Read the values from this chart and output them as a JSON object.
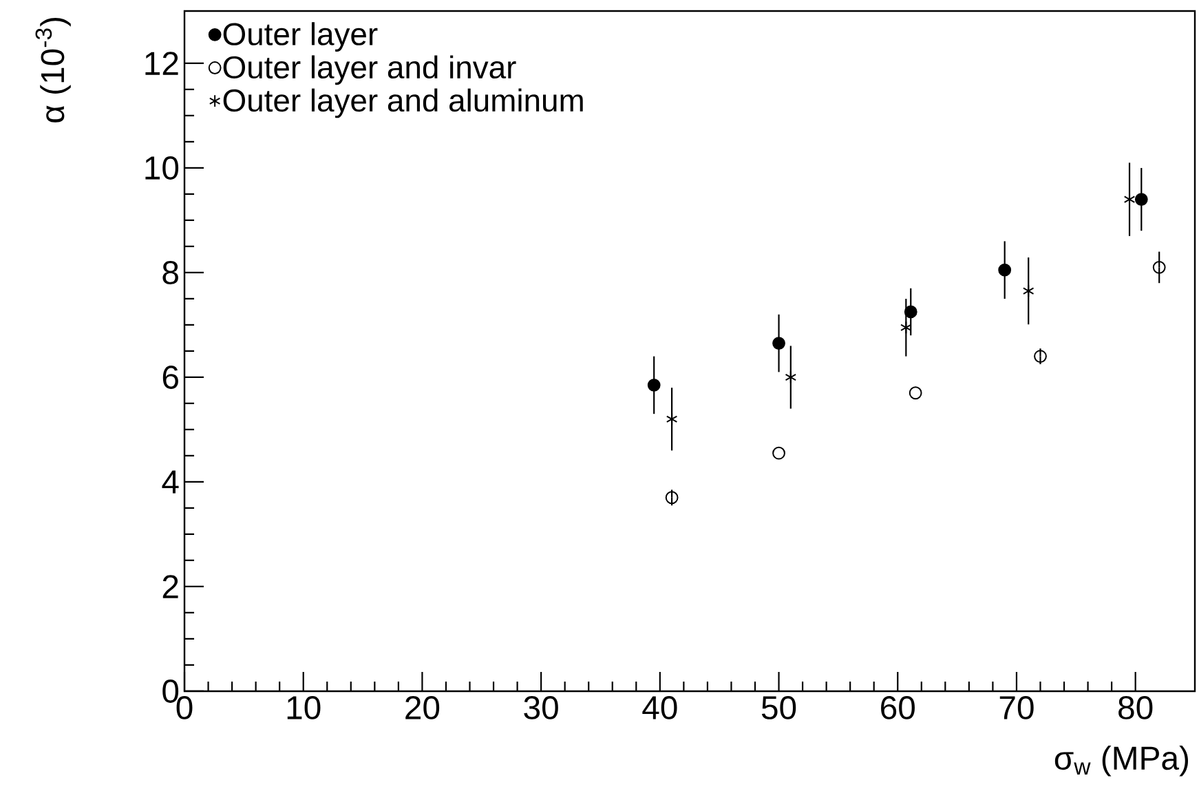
{
  "chart_data": {
    "type": "scatter",
    "xlabel": "σ$_{w}$ (MPa)",
    "ylabel": "α (10$^{-3}$)",
    "xlim": [
      0,
      85
    ],
    "ylim": [
      0,
      13
    ],
    "xticks": [
      0,
      10,
      20,
      30,
      40,
      50,
      60,
      70,
      80
    ],
    "yticks": [
      0,
      2,
      4,
      6,
      8,
      10,
      12
    ],
    "grid": false,
    "legend": "top left",
    "series": [
      {
        "name": "Outer layer",
        "color": "#000000",
        "marker": "circle",
        "x": [
          39.5,
          50.0,
          61.1,
          69.0,
          80.5
        ],
        "values": [
          5.85,
          6.65,
          7.25,
          8.05,
          9.4
        ],
        "errors": [
          0.55,
          0.55,
          0.45,
          0.55,
          0.6
        ]
      },
      {
        "name": "Outer layer and invar",
        "color": "#000000",
        "marker": "circle",
        "x": [
          41.0,
          50.0,
          61.5,
          72.0,
          82.0
        ],
        "values": [
          3.7,
          4.55,
          5.7,
          6.4,
          8.1
        ],
        "errors": [
          0.15,
          null,
          null,
          0.15,
          0.3
        ]
      },
      {
        "name": "Outer layer and aluminum",
        "color": "#000000",
        "marker": "cross",
        "x": [
          41.0,
          51.0,
          60.7,
          71.0,
          79.5
        ],
        "values": [
          5.2,
          6.0,
          6.95,
          7.65,
          9.4
        ],
        "errors": [
          0.6,
          0.6,
          0.55,
          0.64,
          0.7
        ]
      }
    ]
  }
}
